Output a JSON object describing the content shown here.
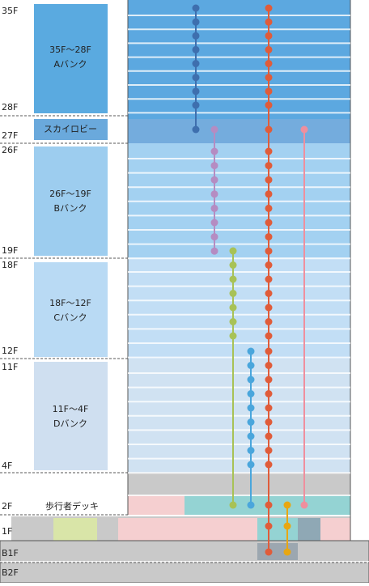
{
  "floors": [
    "35F",
    "28F",
    "27F",
    "26F",
    "19F",
    "18F",
    "12F",
    "11F",
    "4F",
    "2F",
    "1F",
    "B1F",
    "B2F"
  ],
  "banks": [
    {
      "range": "35F～28F",
      "name": "Aバンク"
    },
    {
      "range": "26F～19F",
      "name": "Bバンク"
    },
    {
      "range": "18F～12F",
      "name": "Cバンク"
    },
    {
      "range": "11F～4F",
      "name": "Dバンク"
    }
  ],
  "skylobby": "スカイロビー",
  "deck": "歩行者デッキ"
}
